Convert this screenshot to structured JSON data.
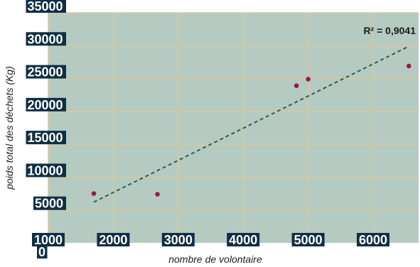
{
  "chart_data": {
    "type": "scatter",
    "xlabel": "nombre de volontaire",
    "ylabel": "poids total des déchets (Kg)",
    "xlim": [
      1000,
      6700
    ],
    "ylim": [
      0,
      35000
    ],
    "x_ticks": [
      1000,
      2000,
      3000,
      4000,
      5000,
      6000
    ],
    "x_tick_labels": [
      "1000",
      "2000",
      "3000",
      "4000",
      "5000",
      "6000"
    ],
    "y_ticks": [
      0,
      5000,
      10000,
      15000,
      20000,
      25000,
      30000,
      35000
    ],
    "y_tick_labels": [
      "0",
      "5000",
      "10000",
      "15000",
      "20000",
      "25000",
      "30000",
      "35000"
    ],
    "grid": true,
    "series": [
      {
        "x": [
          1700,
          2680,
          4820,
          5000,
          6550
        ],
        "y": [
          7500,
          7400,
          23900,
          24900,
          26900
        ],
        "marker_color": "#8e1c48"
      }
    ],
    "trendline": {
      "type": "linear",
      "x_range": [
        1700,
        6550
      ],
      "y_start": 6200,
      "y_end": 29900,
      "style": "dashed",
      "color": "#2b5b55"
    },
    "annotation": "R² = 0,9041",
    "colors": {
      "plot_background": "#b5cbc2",
      "gridline": "#d8c89c",
      "tick_label_background": "#0f2f44",
      "tick_label_text": "#ffffff"
    }
  }
}
